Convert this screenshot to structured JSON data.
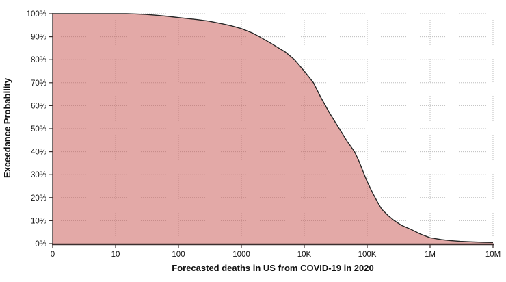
{
  "chart_data": {
    "type": "area",
    "title": "",
    "xlabel": "Forecasted deaths in US from COVID-19 in 2020",
    "ylabel": "Exceedance Probability",
    "x_scale": "log",
    "x_axis_note": "log axis, leftmost tick displayed as 0, decades up to 10M",
    "x_tick_values": [
      1,
      10,
      100,
      1000,
      10000,
      100000,
      1000000,
      10000000
    ],
    "x_tick_labels": [
      "0",
      "10",
      "100",
      "1000",
      "10K",
      "100K",
      "1M",
      "10M"
    ],
    "y_tick_values": [
      0,
      10,
      20,
      30,
      40,
      50,
      60,
      70,
      80,
      90,
      100
    ],
    "y_tick_labels": [
      "0%",
      "10%",
      "20%",
      "30%",
      "40%",
      "50%",
      "60%",
      "70%",
      "80%",
      "90%",
      "100%"
    ],
    "ylim": [
      0,
      100
    ],
    "grid": "dotted",
    "legend": "none",
    "series": [
      {
        "name": "Exceedance Probability",
        "points": [
          [
            1,
            100
          ],
          [
            5,
            100
          ],
          [
            10,
            100
          ],
          [
            15,
            100
          ],
          [
            20,
            99.9
          ],
          [
            30,
            99.7
          ],
          [
            50,
            99.2
          ],
          [
            70,
            98.8
          ],
          [
            100,
            98.3
          ],
          [
            150,
            97.8
          ],
          [
            200,
            97.4
          ],
          [
            300,
            96.8
          ],
          [
            500,
            95.6
          ],
          [
            700,
            94.7
          ],
          [
            1000,
            93.5
          ],
          [
            1500,
            91.6
          ],
          [
            2000,
            89.8
          ],
          [
            3000,
            87.0
          ],
          [
            5000,
            83.3
          ],
          [
            7000,
            80.0
          ],
          [
            10000,
            75.0
          ],
          [
            14000,
            70.0
          ],
          [
            18000,
            64.0
          ],
          [
            25000,
            57.0
          ],
          [
            36000,
            50.0
          ],
          [
            48000,
            44.5
          ],
          [
            63000,
            40.0
          ],
          [
            75000,
            35.5
          ],
          [
            90000,
            30.0
          ],
          [
            100000,
            27.0
          ],
          [
            125000,
            21.5
          ],
          [
            150000,
            17.5
          ],
          [
            170000,
            15.0
          ],
          [
            220000,
            12.0
          ],
          [
            270000,
            10.0
          ],
          [
            350000,
            8.0
          ],
          [
            500000,
            6.2
          ],
          [
            700000,
            4.2
          ],
          [
            1000000,
            2.6
          ],
          [
            1500000,
            1.8
          ],
          [
            2000000,
            1.4
          ],
          [
            3000000,
            1.0
          ],
          [
            5000000,
            0.75
          ],
          [
            7000000,
            0.6
          ],
          [
            10000000,
            0.5
          ]
        ]
      }
    ],
    "colors": {
      "area_fill": "rgba(200,84,80,0.5)",
      "curve_line": "#262626",
      "grid_line": "#bdbdbd",
      "axis_line": "#3b2f2f",
      "tick_text": "#111111"
    }
  }
}
